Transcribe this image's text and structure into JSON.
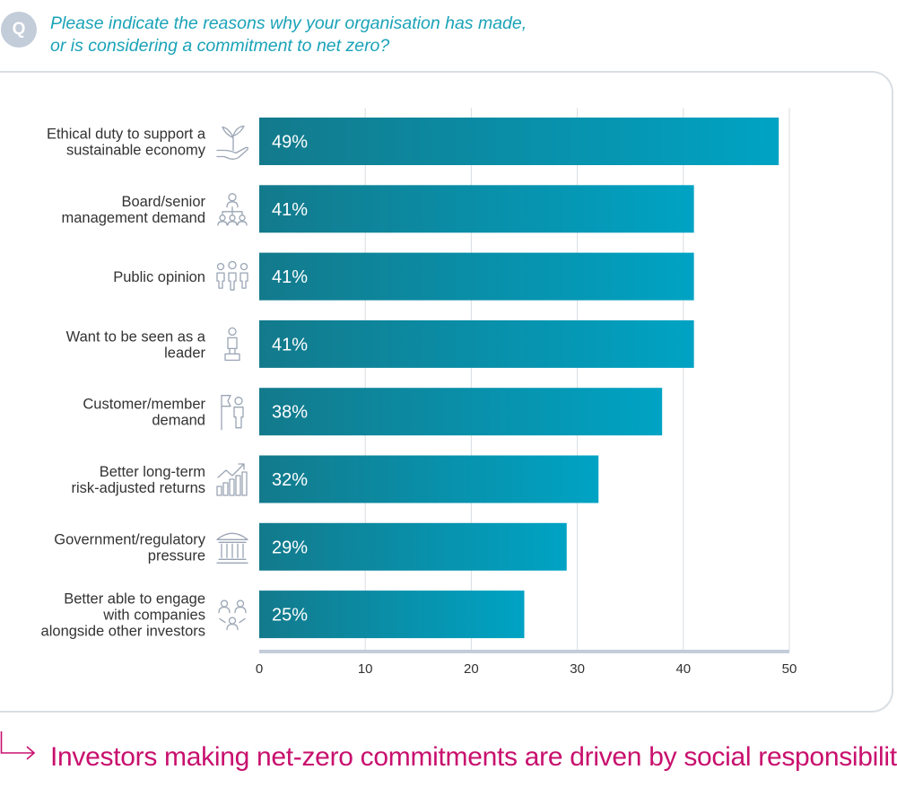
{
  "header": {
    "badge": "Q",
    "question_line1": "Please indicate the reasons why your organisation has made,",
    "question_line2": "or is considering a commitment to net zero?"
  },
  "takeaway": {
    "text": "Investors making net-zero commitments are driven by social responsibility"
  },
  "colors": {
    "bar_start": "#137a8c",
    "bar_end": "#00a3c4",
    "grid": "#d8dde2",
    "axis": "#c3ccd9",
    "icon": "#9aa5b4",
    "accent": "#c8106e",
    "question": "#1aa3b8"
  },
  "chart_data": {
    "type": "bar",
    "orientation": "horizontal",
    "title": "",
    "xlabel": "",
    "ylabel": "",
    "xlim": [
      0,
      50
    ],
    "ticks": [
      0,
      10,
      20,
      30,
      40,
      50
    ],
    "grid": true,
    "categories": [
      {
        "lines": [
          "Ethical duty to support a",
          "sustainable economy"
        ],
        "icon": "hand-plant-icon"
      },
      {
        "lines": [
          "Board/senior",
          "management demand"
        ],
        "icon": "org-chart-icon"
      },
      {
        "lines": [
          "Public opinion"
        ],
        "icon": "people-group-icon"
      },
      {
        "lines": [
          "Want to be seen as a",
          "leader"
        ],
        "icon": "trophy-icon"
      },
      {
        "lines": [
          "Customer/member",
          "demand"
        ],
        "icon": "person-flag-icon"
      },
      {
        "lines": [
          "Better long-term",
          "risk-adjusted returns"
        ],
        "icon": "growth-chart-icon"
      },
      {
        "lines": [
          "Government/regulatory",
          "pressure"
        ],
        "icon": "government-building-icon"
      },
      {
        "lines": [
          "Better able to engage",
          "with companies",
          "alongside other investors"
        ],
        "icon": "people-network-icon"
      }
    ],
    "values": [
      49,
      41,
      41,
      41,
      38,
      32,
      29,
      25
    ],
    "value_labels": [
      "49%",
      "41%",
      "41%",
      "41%",
      "38%",
      "32%",
      "29%",
      "25%"
    ]
  }
}
